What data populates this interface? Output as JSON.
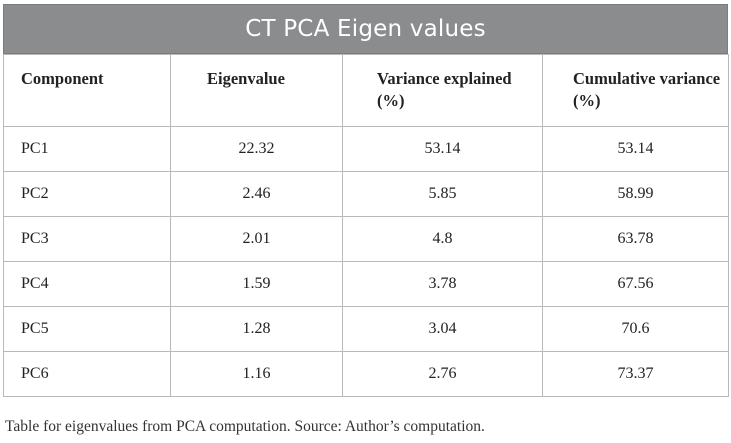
{
  "title": "CT PCA Eigen values",
  "headers": [
    "Component",
    "Eigenvalue",
    "Variance explained (%)",
    "Cumulative variance (%)"
  ],
  "rows": [
    [
      "PC1",
      "22.32",
      "53.14",
      "53.14"
    ],
    [
      "PC2",
      "2.46",
      "5.85",
      "58.99"
    ],
    [
      "PC3",
      "2.01",
      "4.8",
      "63.78"
    ],
    [
      "PC4",
      "1.59",
      "3.78",
      "67.56"
    ],
    [
      "PC5",
      "1.28",
      "3.04",
      "70.6"
    ],
    [
      "PC6",
      "1.16",
      "2.76",
      "73.37"
    ]
  ],
  "caption": "Table for eigenvalues from PCA computation. Source: Author’s computation."
}
